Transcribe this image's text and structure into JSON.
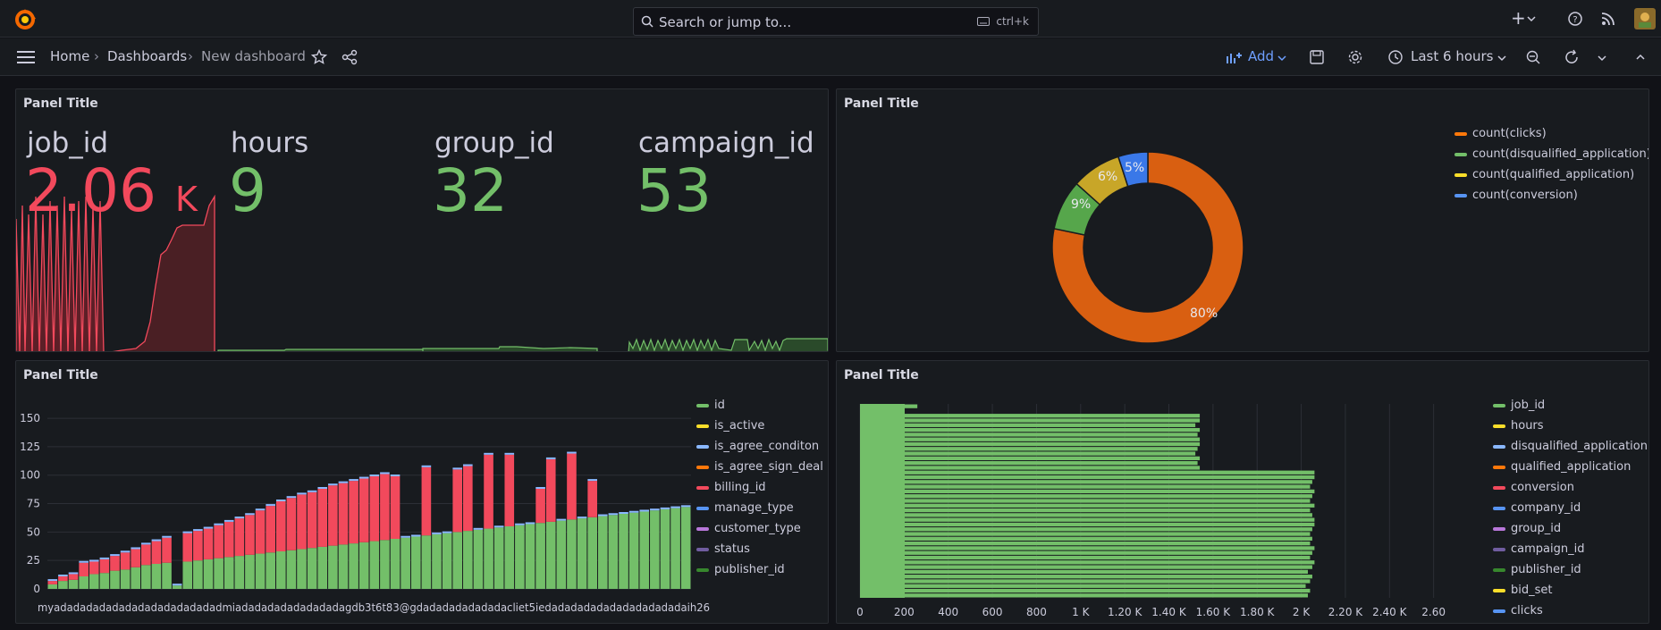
{
  "topbar": {
    "search_placeholder": "Search or jump to...",
    "search_shortcut": "ctrl+k",
    "plus_label": "+"
  },
  "breadcrumb": {
    "home": "Home",
    "dashboards": "Dashboards",
    "current": "New dashboard"
  },
  "toolbar": {
    "add_label": "Add",
    "time_range": "Last 6 hours"
  },
  "colors": {
    "green": "#73bf69",
    "red": "#f2495c",
    "orange": "#ff780a",
    "yellow": "#fade2a",
    "blue": "#5794f2",
    "darkgreen": "#37872d"
  },
  "stat_panel": {
    "title": "Panel Title",
    "stats": [
      {
        "label": "job_id",
        "value": "2.06",
        "unit": "K"
      },
      {
        "label": "hours",
        "value": "9",
        "unit": ""
      },
      {
        "label": "group_id",
        "value": "32",
        "unit": ""
      },
      {
        "label": "campaign_id",
        "value": "53",
        "unit": ""
      }
    ]
  },
  "donut_panel": {
    "title": "Panel Title",
    "legend": [
      "count(clicks)",
      "count(disqualified_application)",
      "count(qualified_application)",
      "count(conversion)"
    ],
    "legend_colors": [
      "#ff780a",
      "#73bf69",
      "#fade2a",
      "#5794f2"
    ],
    "percent_labels": [
      "80%",
      "9%",
      "6%",
      "5%"
    ]
  },
  "bar_panel": {
    "title": "Panel Title",
    "legend": [
      "id",
      "is_active",
      "is_agree_conditon",
      "is_agree_sign_deal",
      "billing_id",
      "manage_type",
      "customer_type",
      "status",
      "publisher_id"
    ],
    "legend_colors": [
      "#73bf69",
      "#fade2a",
      "#8ab8ff",
      "#ff780a",
      "#f2495c",
      "#5794f2",
      "#b877d9",
      "#705da0",
      "#37872d"
    ],
    "x_tick_label": "myadadadadadadadadadadadadadmiadadadadadadadadagdb3t6t83@gdadadadadadadacliet5iedadadadadadadadadadadaih26",
    "chart_data": {
      "type": "bar",
      "stacked": true,
      "yticks": [
        0,
        25,
        50,
        75,
        100,
        125,
        150
      ],
      "ylim": [
        0,
        165
      ],
      "series": [
        {
          "name": "id",
          "values": [
            4,
            7,
            8,
            11,
            13,
            14,
            16,
            17,
            19,
            21,
            22,
            23,
            3,
            24,
            25,
            26,
            27,
            28,
            29,
            30,
            31,
            32,
            33,
            34,
            35,
            36,
            37,
            38,
            39,
            40,
            41,
            42,
            43,
            44,
            45,
            46,
            47,
            48,
            49,
            50,
            51,
            52,
            53,
            54,
            55,
            56,
            57,
            58,
            59,
            60,
            61,
            62,
            63,
            64,
            65,
            66,
            67,
            68,
            69,
            70,
            71,
            72
          ]
        },
        {
          "name": "billing_id",
          "values": [
            3,
            4,
            5,
            12,
            11,
            12,
            13,
            15,
            16,
            18,
            20,
            22,
            0,
            25,
            26,
            27,
            29,
            31,
            33,
            35,
            38,
            41,
            44,
            46,
            48,
            49,
            51,
            53,
            54,
            55,
            56,
            57,
            58,
            55,
            0,
            0,
            60,
            0,
            0,
            55,
            57,
            0,
            65,
            0,
            63,
            0,
            0,
            30,
            55,
            0,
            58,
            0,
            32,
            0,
            0,
            0,
            0,
            0,
            0,
            0,
            0,
            0
          ]
        }
      ]
    }
  },
  "hbar_panel": {
    "title": "Panel Title",
    "legend": [
      "job_id",
      "hours",
      "disqualified_application",
      "qualified_application",
      "conversion",
      "company_id",
      "group_id",
      "campaign_id",
      "publisher_id",
      "bid_set",
      "clicks"
    ],
    "legend_colors": [
      "#73bf69",
      "#fade2a",
      "#8ab8ff",
      "#ff780a",
      "#f2495c",
      "#5794f2",
      "#b877d9",
      "#705da0",
      "#37872d",
      "#fade2a",
      "#5794f2"
    ],
    "x_ticks": [
      "0",
      "200",
      "400",
      "600",
      "800",
      "1 K",
      "1.20 K",
      "1.40 K",
      "1.60 K",
      "1.80 K",
      "2 K",
      "2.20 K",
      "2.40 K",
      "2.60"
    ],
    "chart_data": {
      "type": "bar",
      "orientation": "horizontal",
      "xlim": [
        0,
        2650
      ],
      "values": [
        260,
        190,
        1540,
        1540,
        1520,
        1540,
        1530,
        1540,
        1540,
        1530,
        1520,
        1540,
        1530,
        1540,
        2060,
        2060,
        2050,
        2040,
        2060,
        2050,
        2040,
        2060,
        2040,
        2050,
        2060,
        2060,
        2050,
        2040,
        2050,
        2040,
        2060,
        2050,
        2040,
        2060,
        2050,
        2030,
        2050,
        2040,
        2020,
        2040,
        2030
      ]
    }
  }
}
